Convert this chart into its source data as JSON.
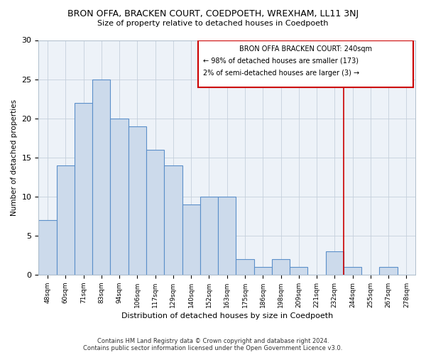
{
  "title1": "BRON OFFA, BRACKEN COURT, COEDPOETH, WREXHAM, LL11 3NJ",
  "title2": "Size of property relative to detached houses in Coedpoeth",
  "xlabel": "Distribution of detached houses by size in Coedpoeth",
  "ylabel": "Number of detached properties",
  "categories": [
    "48sqm",
    "60sqm",
    "71sqm",
    "83sqm",
    "94sqm",
    "106sqm",
    "117sqm",
    "129sqm",
    "140sqm",
    "152sqm",
    "163sqm",
    "175sqm",
    "186sqm",
    "198sqm",
    "209sqm",
    "221sqm",
    "232sqm",
    "244sqm",
    "255sqm",
    "267sqm",
    "278sqm"
  ],
  "values": [
    7,
    14,
    22,
    25,
    20,
    19,
    16,
    14,
    9,
    10,
    10,
    2,
    1,
    2,
    1,
    0,
    3,
    1,
    0,
    1,
    0
  ],
  "bar_color": "#ccdaeb",
  "bar_edge_color": "#5b8fc9",
  "red_line_x": 16.5,
  "highlight_label": "BRON OFFA BRACKEN COURT: 240sqm",
  "annotation_line1": "← 98% of detached houses are smaller (173)",
  "annotation_line2": "2% of semi-detached houses are larger (3) →",
  "red_color": "#cc0000",
  "ylim": [
    0,
    30
  ],
  "footer1": "Contains HM Land Registry data © Crown copyright and database right 2024.",
  "footer2": "Contains public sector information licensed under the Open Government Licence v3.0.",
  "bg_color": "#edf2f8",
  "grid_color": "#c5d0dc"
}
